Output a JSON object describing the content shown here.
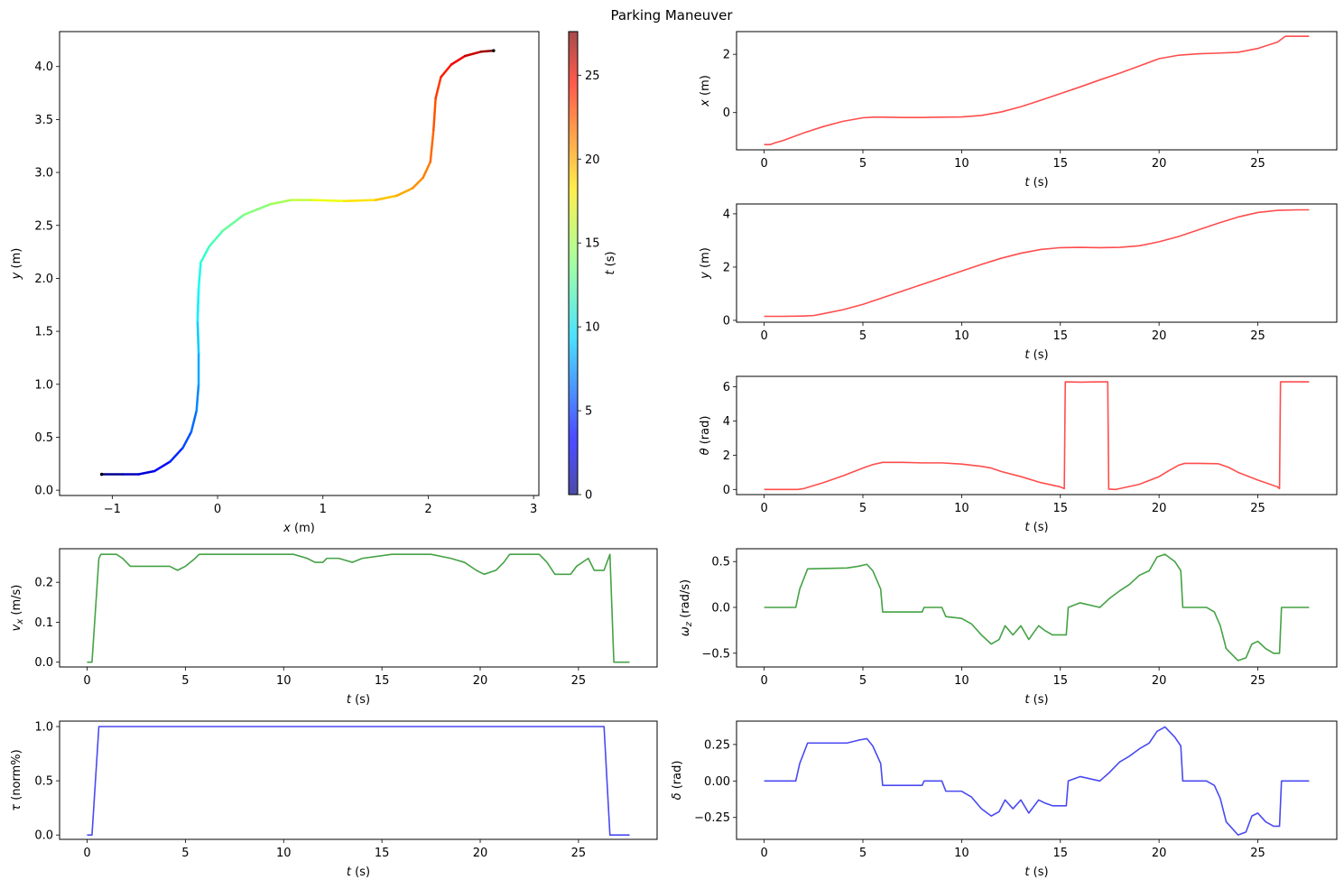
{
  "figure": {
    "title": "Parking Maneuver"
  },
  "chart_data": [
    {
      "id": "trajectory",
      "type": "line",
      "title": "",
      "xlabel": "x (m)",
      "ylabel": "y (m)",
      "xlim": [
        -1.5,
        3.05
      ],
      "ylim": [
        -0.05,
        4.33
      ],
      "xticks": [
        -1,
        0,
        1,
        2,
        3
      ],
      "xtick_labels": [
        "−1",
        "0",
        "1",
        "2",
        "3"
      ],
      "yticks": [
        0.0,
        0.5,
        1.0,
        1.5,
        2.0,
        2.5,
        3.0,
        3.5,
        4.0
      ],
      "ytick_labels": [
        "0.0",
        "0.5",
        "1.0",
        "1.5",
        "2.0",
        "2.5",
        "3.0",
        "3.5",
        "4.0"
      ],
      "color_by": "t",
      "series": [
        {
          "name": "trajectory",
          "x": [
            -1.1,
            -0.9,
            -0.75,
            -0.6,
            -0.45,
            -0.33,
            -0.25,
            -0.2,
            -0.18,
            -0.18,
            -0.19,
            -0.18,
            -0.16,
            -0.08,
            0.05,
            0.25,
            0.5,
            0.7,
            0.9,
            1.2,
            1.5,
            1.7,
            1.85,
            1.95,
            2.02,
            2.05,
            2.07,
            2.12,
            2.22,
            2.35,
            2.5,
            2.62
          ],
          "y": [
            0.15,
            0.15,
            0.15,
            0.18,
            0.27,
            0.4,
            0.55,
            0.75,
            1.0,
            1.3,
            1.6,
            1.9,
            2.15,
            2.3,
            2.45,
            2.6,
            2.7,
            2.74,
            2.74,
            2.73,
            2.74,
            2.78,
            2.85,
            2.95,
            3.1,
            3.4,
            3.7,
            3.9,
            4.02,
            4.1,
            4.14,
            4.15
          ],
          "t": [
            0,
            1,
            2,
            3,
            4,
            5,
            6,
            6.7,
            7.5,
            8.5,
            9.5,
            10.5,
            11.3,
            12,
            12.7,
            13.5,
            14.5,
            15.2,
            16,
            17.5,
            18.5,
            19.3,
            20,
            20.5,
            21,
            21.6,
            22.2,
            23,
            24,
            25,
            26.2,
            27.6
          ]
        }
      ]
    },
    {
      "id": "colorbar",
      "type": "heatmap",
      "title": "",
      "label": "t (s)",
      "range": [
        0,
        27.6
      ],
      "ticks": [
        0,
        5,
        10,
        15,
        20,
        25
      ],
      "tick_labels": [
        "0",
        "5",
        "10",
        "15",
        "20",
        "25"
      ],
      "colormap": "jet"
    },
    {
      "id": "x_vs_t",
      "type": "line",
      "title": "",
      "xlabel": "t (s)",
      "ylabel": "x (m)",
      "xlim": [
        -1.4,
        29.0
      ],
      "ylim": [
        -1.28,
        2.78
      ],
      "xticks": [
        0,
        5,
        10,
        15,
        20,
        25
      ],
      "xtick_labels": [
        "0",
        "5",
        "10",
        "15",
        "20",
        "25"
      ],
      "yticks": [
        0,
        2
      ],
      "ytick_labels": [
        "0",
        "2"
      ],
      "color": "#ff4d4d",
      "series": [
        {
          "name": "x",
          "x": [
            0,
            0.3,
            0.5,
            1,
            2,
            3,
            4,
            5,
            5.5,
            6,
            7,
            8,
            9,
            10,
            11,
            12,
            13,
            14,
            15,
            16,
            17,
            18,
            19,
            20,
            21,
            22,
            23,
            24,
            25,
            26,
            26.4,
            27.6
          ],
          "y": [
            -1.1,
            -1.1,
            -1.05,
            -0.95,
            -0.7,
            -0.48,
            -0.3,
            -0.18,
            -0.16,
            -0.16,
            -0.17,
            -0.17,
            -0.16,
            -0.15,
            -0.1,
            0.02,
            0.2,
            0.42,
            0.65,
            0.88,
            1.12,
            1.35,
            1.6,
            1.85,
            1.97,
            2.02,
            2.04,
            2.07,
            2.2,
            2.42,
            2.62,
            2.62
          ]
        }
      ]
    },
    {
      "id": "y_vs_t",
      "type": "line",
      "title": "",
      "xlabel": "t (s)",
      "ylabel": "y (m)",
      "xlim": [
        -1.4,
        29.0
      ],
      "ylim": [
        -0.07,
        4.37
      ],
      "xticks": [
        0,
        5,
        10,
        15,
        20,
        25
      ],
      "xtick_labels": [
        "0",
        "5",
        "10",
        "15",
        "20",
        "25"
      ],
      "yticks": [
        0,
        2,
        4
      ],
      "ytick_labels": [
        "0",
        "2",
        "4"
      ],
      "color": "#ff4d4d",
      "series": [
        {
          "name": "y",
          "x": [
            0,
            1,
            2,
            2.5,
            3,
            4,
            5,
            6,
            7,
            8,
            9,
            10,
            11,
            12,
            13,
            14,
            15,
            16,
            17,
            18,
            19,
            20,
            21,
            22,
            23,
            24,
            25,
            26,
            27,
            27.6
          ],
          "y": [
            0.15,
            0.15,
            0.16,
            0.18,
            0.25,
            0.4,
            0.6,
            0.85,
            1.1,
            1.35,
            1.6,
            1.85,
            2.1,
            2.33,
            2.52,
            2.66,
            2.73,
            2.74,
            2.73,
            2.74,
            2.8,
            2.95,
            3.15,
            3.4,
            3.65,
            3.88,
            4.05,
            4.13,
            4.15,
            4.15
          ]
        }
      ]
    },
    {
      "id": "theta_vs_t",
      "type": "line",
      "title": "",
      "xlabel": "t (s)",
      "ylabel": "θ (rad)",
      "xlim": [
        -1.4,
        29.0
      ],
      "ylim": [
        -0.3,
        6.6
      ],
      "xticks": [
        0,
        5,
        10,
        15,
        20,
        25
      ],
      "xtick_labels": [
        "0",
        "5",
        "10",
        "15",
        "20",
        "25"
      ],
      "yticks": [
        0,
        2,
        4,
        6
      ],
      "ytick_labels": [
        "0",
        "2",
        "4",
        "6"
      ],
      "color": "#ff4d4d",
      "series": [
        {
          "name": "theta",
          "x": [
            0,
            1.7,
            2,
            3,
            4,
            5,
            5.5,
            6,
            7,
            8,
            9,
            10,
            11,
            11.5,
            12,
            13,
            14,
            15,
            15.2,
            15.25,
            16,
            17,
            17.4,
            17.45,
            17.8,
            18,
            19,
            20,
            20.5,
            21,
            21.3,
            22,
            23,
            23.5,
            24,
            25,
            26,
            26.1,
            26.15,
            27,
            27.6
          ],
          "y": [
            0,
            0,
            0.05,
            0.4,
            0.8,
            1.25,
            1.45,
            1.58,
            1.58,
            1.55,
            1.55,
            1.48,
            1.35,
            1.25,
            1.05,
            0.75,
            0.4,
            0.15,
            0.05,
            6.28,
            6.26,
            6.28,
            6.28,
            0.02,
            0.0,
            0.05,
            0.3,
            0.75,
            1.1,
            1.42,
            1.52,
            1.52,
            1.5,
            1.3,
            1.0,
            0.55,
            0.15,
            0.05,
            6.28,
            6.28,
            6.28
          ]
        }
      ]
    },
    {
      "id": "vx_vs_t",
      "type": "line",
      "title": "",
      "xlabel": "t (s)",
      "ylabel": "v_x (m/s)",
      "xlim": [
        -1.4,
        29.0
      ],
      "ylim": [
        -0.012,
        0.284
      ],
      "xticks": [
        0,
        5,
        10,
        15,
        20,
        25
      ],
      "xtick_labels": [
        "0",
        "5",
        "10",
        "15",
        "20",
        "25"
      ],
      "yticks": [
        0.0,
        0.1,
        0.2
      ],
      "ytick_labels": [
        "0.0",
        "0.1",
        "0.2"
      ],
      "color": "#44a244",
      "series": [
        {
          "name": "vx",
          "x": [
            0,
            0.25,
            0.6,
            0.7,
            1.5,
            1.8,
            2.2,
            4.2,
            4.6,
            5.0,
            5.5,
            5.7,
            6.2,
            10.5,
            11.2,
            11.6,
            12.0,
            12.2,
            12.8,
            13.5,
            14.0,
            15.5,
            17.5,
            18.5,
            19.2,
            19.8,
            20.2,
            20.8,
            21.2,
            21.5,
            23.0,
            23.4,
            23.8,
            24.6,
            24.9,
            25.5,
            25.8,
            26.3,
            26.6,
            26.8,
            27.6
          ],
          "y": [
            0,
            0,
            0.26,
            0.27,
            0.27,
            0.26,
            0.24,
            0.24,
            0.23,
            0.24,
            0.26,
            0.27,
            0.27,
            0.27,
            0.26,
            0.25,
            0.25,
            0.26,
            0.26,
            0.25,
            0.26,
            0.27,
            0.27,
            0.26,
            0.25,
            0.23,
            0.22,
            0.23,
            0.25,
            0.27,
            0.27,
            0.25,
            0.22,
            0.22,
            0.24,
            0.26,
            0.23,
            0.23,
            0.27,
            0.0,
            0.0
          ]
        }
      ]
    },
    {
      "id": "wz_vs_t",
      "type": "line",
      "title": "",
      "xlabel": "t (s)",
      "ylabel": "ω_z (rad/s)",
      "xlim": [
        -1.4,
        29.0
      ],
      "ylim": [
        -0.65,
        0.64
      ],
      "xticks": [
        0,
        5,
        10,
        15,
        20,
        25
      ],
      "xtick_labels": [
        "0",
        "5",
        "10",
        "15",
        "20",
        "25"
      ],
      "yticks": [
        -0.5,
        0.0,
        0.5
      ],
      "ytick_labels": [
        "−0.5",
        "0.0",
        "0.5"
      ],
      "color": "#44a244",
      "series": [
        {
          "name": "wz",
          "x": [
            0,
            1.6,
            1.8,
            2.2,
            4.2,
            4.8,
            5.2,
            5.5,
            5.9,
            6.0,
            6.8,
            8.0,
            8.1,
            9.0,
            9.2,
            10.0,
            10.5,
            11.0,
            11.5,
            11.9,
            12.2,
            12.6,
            13.0,
            13.4,
            13.9,
            14.2,
            14.6,
            15.3,
            15.4,
            16.0,
            17.0,
            17.5,
            18.0,
            18.5,
            19.0,
            19.5,
            19.9,
            20.3,
            20.8,
            21.1,
            21.2,
            22.4,
            22.8,
            23.1,
            23.4,
            24.0,
            24.4,
            24.7,
            25.0,
            25.4,
            25.8,
            26.1,
            26.2,
            27.6
          ],
          "y": [
            0,
            0,
            0.2,
            0.42,
            0.43,
            0.45,
            0.47,
            0.4,
            0.2,
            -0.05,
            -0.05,
            -0.05,
            0.0,
            0.0,
            -0.1,
            -0.12,
            -0.18,
            -0.3,
            -0.4,
            -0.35,
            -0.2,
            -0.3,
            -0.2,
            -0.35,
            -0.2,
            -0.25,
            -0.3,
            -0.3,
            0.0,
            0.05,
            0.0,
            0.1,
            0.18,
            0.25,
            0.35,
            0.4,
            0.55,
            0.58,
            0.5,
            0.4,
            0.0,
            0.0,
            -0.05,
            -0.2,
            -0.45,
            -0.58,
            -0.55,
            -0.4,
            -0.37,
            -0.45,
            -0.5,
            -0.5,
            0.0,
            0.0
          ]
        }
      ]
    },
    {
      "id": "tau_vs_t",
      "type": "line",
      "title": "",
      "xlabel": "t (s)",
      "ylabel": "τ (norm%)",
      "xlim": [
        -1.4,
        29.0
      ],
      "ylim": [
        -0.04,
        1.05
      ],
      "xticks": [
        0,
        5,
        10,
        15,
        20,
        25
      ],
      "xtick_labels": [
        "0",
        "5",
        "10",
        "15",
        "20",
        "25"
      ],
      "yticks": [
        0.0,
        0.5,
        1.0
      ],
      "ytick_labels": [
        "0.0",
        "0.5",
        "1.0"
      ],
      "color": "#4a4af0",
      "series": [
        {
          "name": "tau",
          "x": [
            0,
            0.25,
            0.6,
            26.3,
            26.6,
            27.6
          ],
          "y": [
            0,
            0,
            1.0,
            1.0,
            0.0,
            0.0
          ]
        }
      ]
    },
    {
      "id": "delta_vs_t",
      "type": "line",
      "title": "",
      "xlabel": "t (s)",
      "ylabel": "δ (rad)",
      "xlim": [
        -1.4,
        29.0
      ],
      "ylim": [
        -0.4,
        0.41
      ],
      "xticks": [
        0,
        5,
        10,
        15,
        20,
        25
      ],
      "xtick_labels": [
        "0",
        "5",
        "10",
        "15",
        "20",
        "25"
      ],
      "yticks": [
        -0.25,
        0.0,
        0.25
      ],
      "ytick_labels": [
        "−0.25",
        "0.00",
        "0.25"
      ],
      "color": "#4a4af0",
      "series": [
        {
          "name": "delta",
          "x": [
            0,
            1.6,
            1.8,
            2.2,
            4.2,
            4.8,
            5.2,
            5.5,
            5.9,
            6.0,
            6.8,
            8.0,
            8.1,
            9.0,
            9.2,
            10.0,
            10.5,
            11.0,
            11.5,
            11.9,
            12.2,
            12.6,
            13.0,
            13.4,
            13.9,
            14.2,
            14.6,
            15.3,
            15.4,
            16.0,
            17.0,
            17.5,
            18.0,
            18.5,
            19.0,
            19.5,
            19.9,
            20.3,
            20.8,
            21.1,
            21.2,
            22.4,
            22.8,
            23.1,
            23.4,
            24.0,
            24.4,
            24.7,
            25.0,
            25.4,
            25.8,
            26.1,
            26.2,
            27.6
          ],
          "y": [
            0,
            0,
            0.12,
            0.26,
            0.26,
            0.28,
            0.29,
            0.24,
            0.12,
            -0.03,
            -0.03,
            -0.03,
            0.0,
            0.0,
            -0.07,
            -0.07,
            -0.11,
            -0.19,
            -0.24,
            -0.21,
            -0.13,
            -0.19,
            -0.13,
            -0.22,
            -0.13,
            -0.15,
            -0.17,
            -0.17,
            0.0,
            0.03,
            0.0,
            0.06,
            0.13,
            0.17,
            0.22,
            0.26,
            0.34,
            0.37,
            0.3,
            0.24,
            0.0,
            0.0,
            -0.03,
            -0.12,
            -0.28,
            -0.37,
            -0.35,
            -0.24,
            -0.22,
            -0.28,
            -0.31,
            -0.31,
            0.0,
            0.0
          ]
        }
      ]
    }
  ]
}
